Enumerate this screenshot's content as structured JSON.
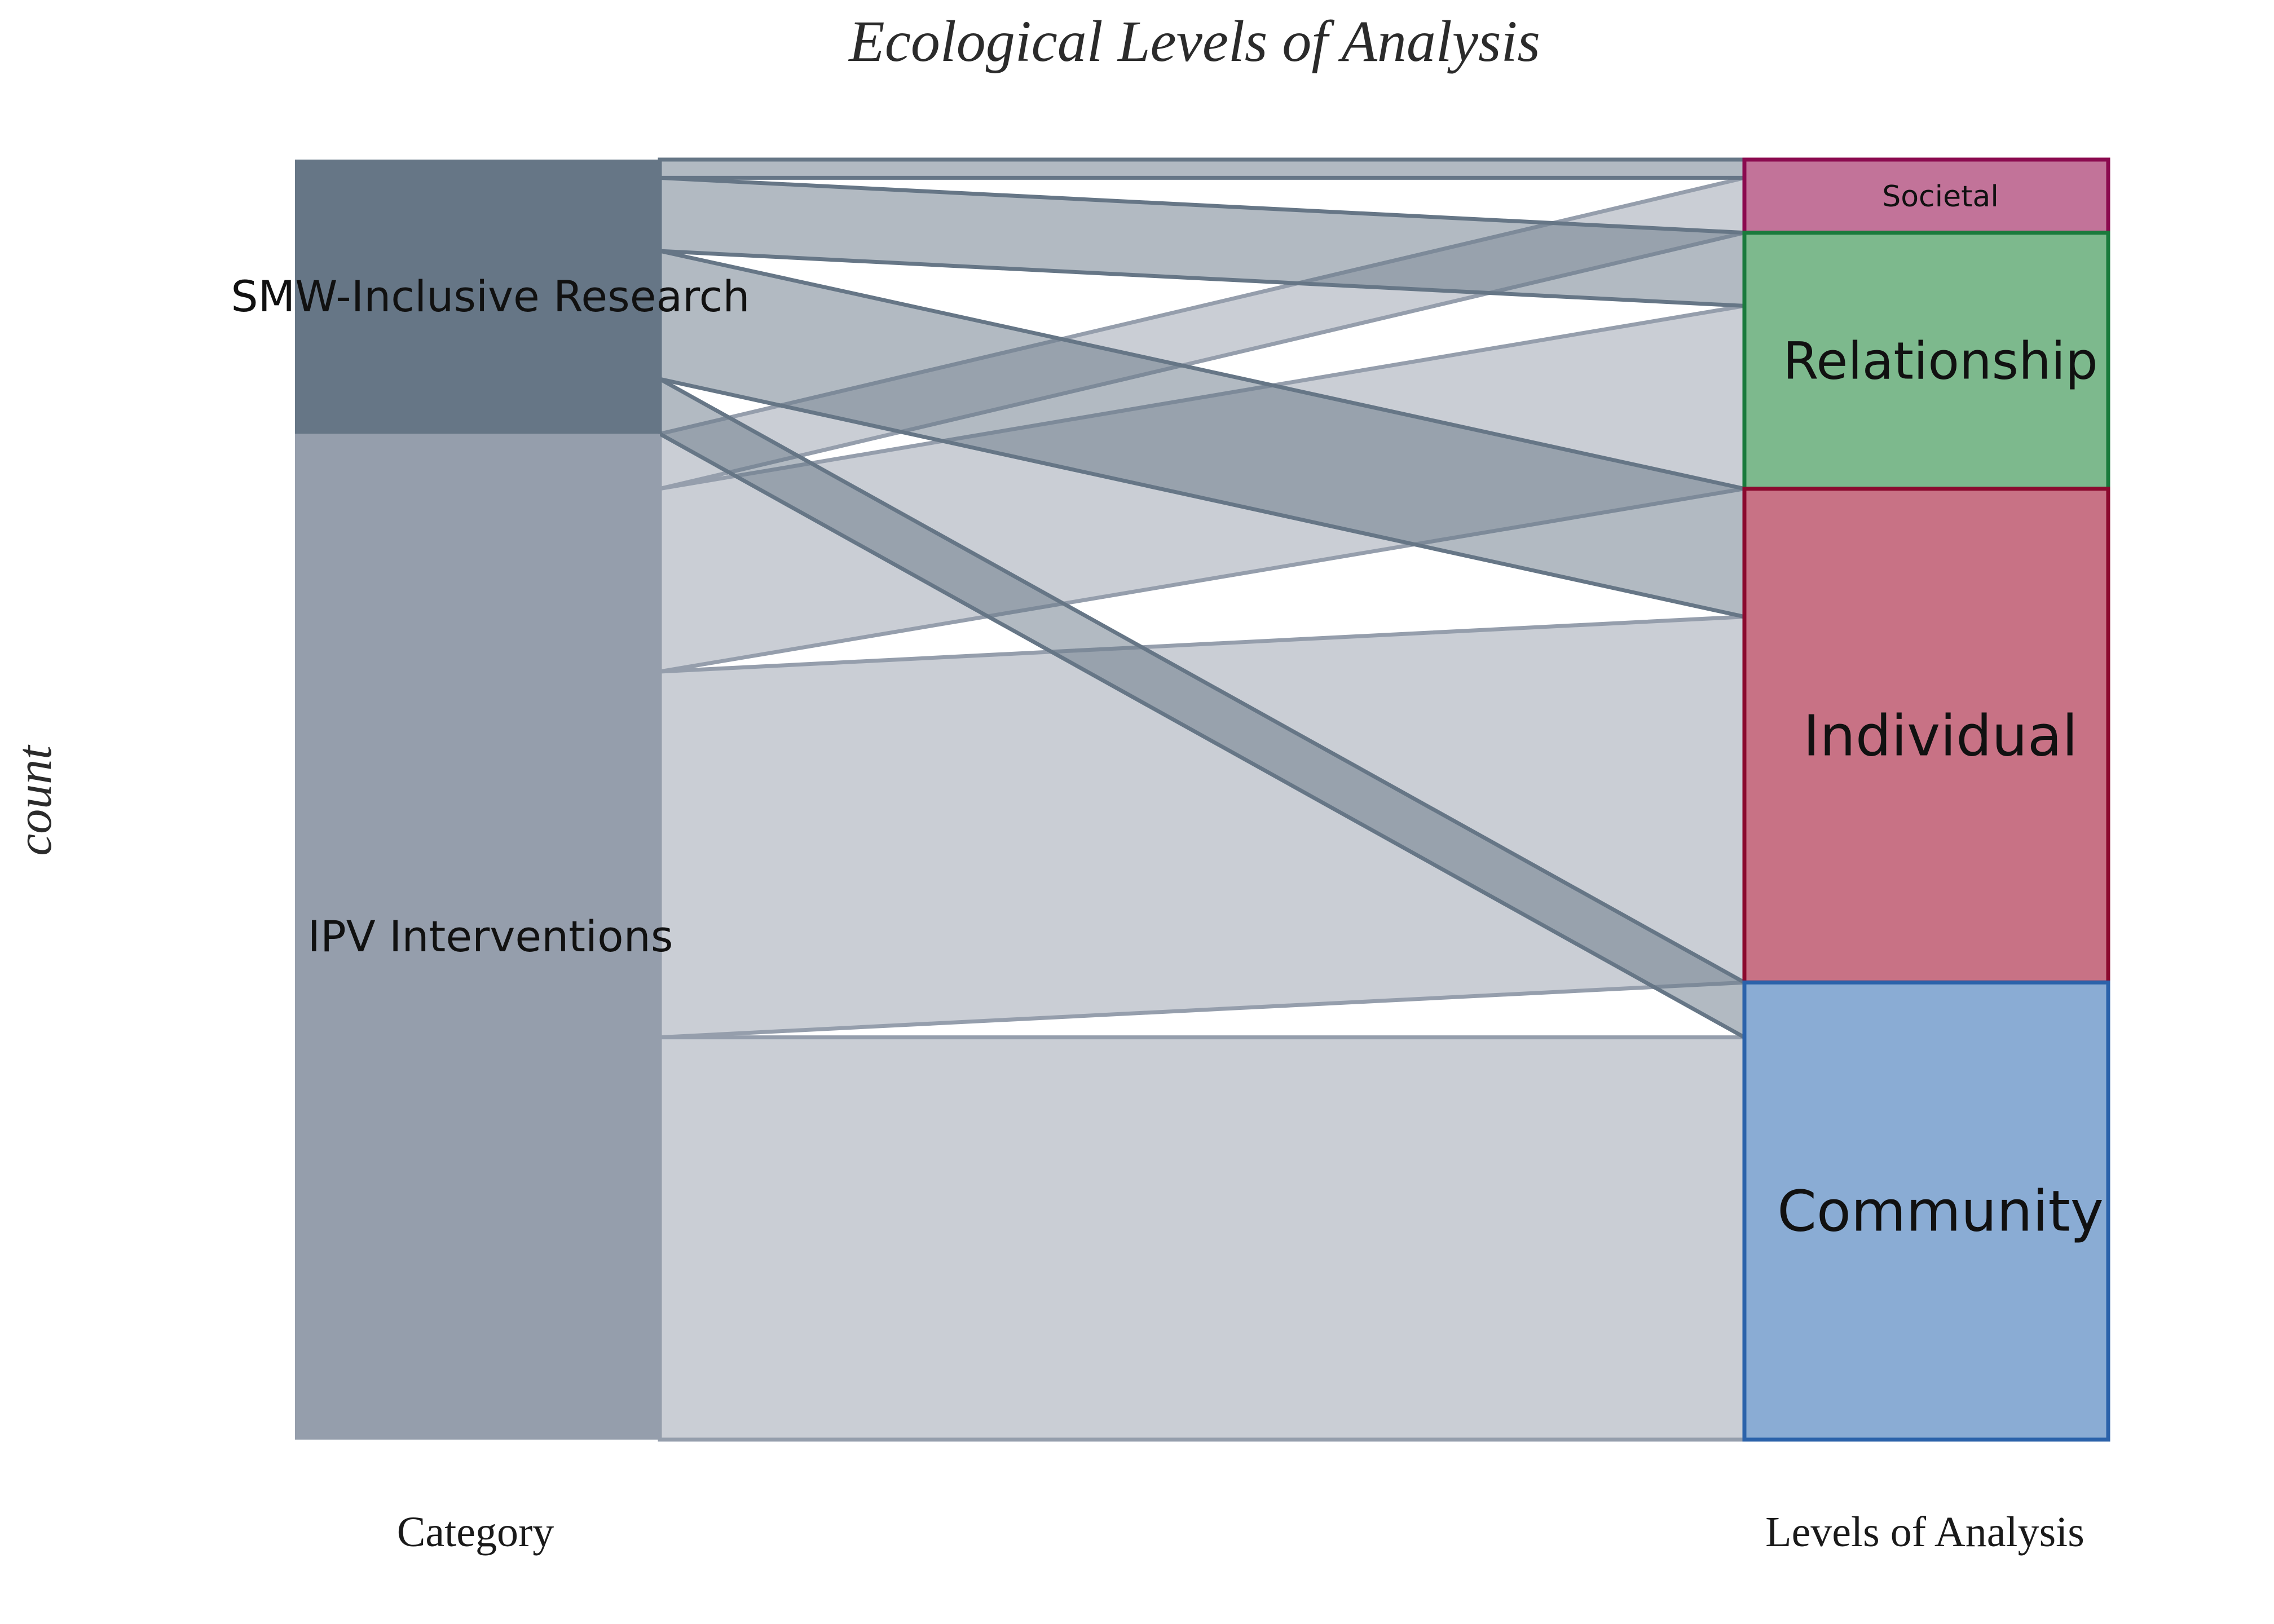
{
  "chart_data": {
    "type": "alluvial",
    "title": "Ecological Levels of Analysis",
    "ylabel": "count",
    "axes": [
      "Category",
      "Levels of Analysis"
    ],
    "left_nodes": [
      {
        "name": "SMW-Inclusive Research",
        "color": "#667686"
      },
      {
        "name": "IPV Interventions",
        "color": "#959eac"
      }
    ],
    "right_nodes": [
      {
        "name": "Societal",
        "fill": "#c27399",
        "stroke": "#8b0a4f"
      },
      {
        "name": "Relationship",
        "fill": "#7db98d",
        "stroke": "#1a7a3c"
      },
      {
        "name": "Individual",
        "fill": "#c87285",
        "stroke": "#8b0a2e"
      },
      {
        "name": "Community",
        "fill": "#8aacd4",
        "stroke": "#2b62aa"
      }
    ],
    "flows": [
      {
        "source": "SMW-Inclusive Research",
        "target": "Societal",
        "value": 1
      },
      {
        "source": "SMW-Inclusive Research",
        "target": "Relationship",
        "value": 4
      },
      {
        "source": "SMW-Inclusive Research",
        "target": "Individual",
        "value": 7
      },
      {
        "source": "SMW-Inclusive Research",
        "target": "Community",
        "value": 3
      },
      {
        "source": "IPV Interventions",
        "target": "Societal",
        "value": 3
      },
      {
        "source": "IPV Interventions",
        "target": "Relationship",
        "value": 10
      },
      {
        "source": "IPV Interventions",
        "target": "Individual",
        "value": 20
      },
      {
        "source": "IPV Interventions",
        "target": "Community",
        "value": 22
      }
    ]
  }
}
